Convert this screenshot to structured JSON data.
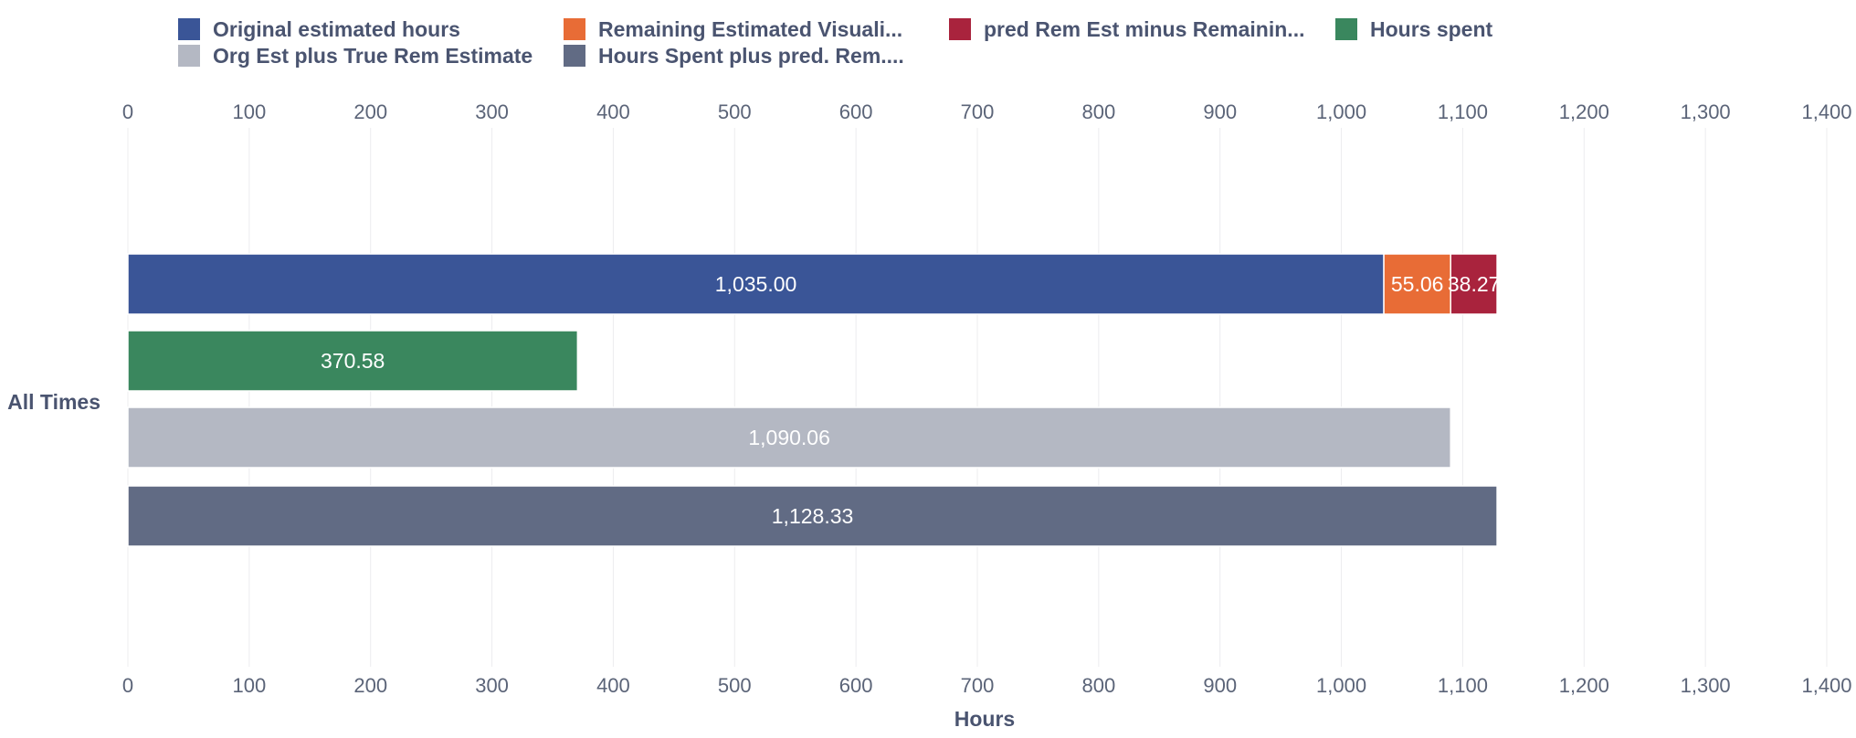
{
  "chart_data": {
    "type": "bar",
    "orientation": "horizontal",
    "categories": [
      "All Times"
    ],
    "xlabel": "Hours",
    "xlim": [
      0,
      1400
    ],
    "x_ticks": [
      0,
      100,
      200,
      300,
      400,
      500,
      600,
      700,
      800,
      900,
      1000,
      1100,
      1200,
      1300,
      1400
    ],
    "x_tick_labels": [
      "0",
      "100",
      "200",
      "300",
      "400",
      "500",
      "600",
      "700",
      "800",
      "900",
      "1,000",
      "1,100",
      "1,200",
      "1,300",
      "1,400"
    ],
    "grid": true,
    "legend_position": "top-left",
    "legend": [
      {
        "label": "Original estimated hours",
        "color": "#3a5597"
      },
      {
        "label": "Remaining Estimated Visuali...",
        "color": "#e86c36"
      },
      {
        "label": "pred Rem Est minus Remainin...",
        "color": "#a9233d"
      },
      {
        "label": "Hours spent",
        "color": "#3a875e"
      },
      {
        "label": "Org Est plus True Rem Estimate",
        "color": "#b4b8c3"
      },
      {
        "label": "Hours Spent plus pred. Rem....",
        "color": "#616b84"
      }
    ],
    "bars": [
      {
        "segments": [
          {
            "series": "Original estimated hours",
            "value": 1035.0,
            "label": "1,035.00",
            "color": "#3a5597"
          },
          {
            "series": "Remaining Estimated Visuali...",
            "value": 55.06,
            "label": "55.06",
            "color": "#e86c36"
          },
          {
            "series": "pred Rem Est minus Remainin...",
            "value": 38.27,
            "label": "38.27",
            "color": "#a9233d"
          }
        ]
      },
      {
        "segments": [
          {
            "series": "Hours spent",
            "value": 370.58,
            "label": "370.58",
            "color": "#3a875e"
          }
        ]
      },
      {
        "segments": [
          {
            "series": "Org Est plus True Rem Estimate",
            "value": 1090.06,
            "label": "1,090.06",
            "color": "#b4b8c3"
          }
        ]
      },
      {
        "segments": [
          {
            "series": "Hours Spent plus pred. Rem....",
            "value": 1128.33,
            "label": "1,128.33",
            "color": "#616b84"
          }
        ]
      }
    ]
  }
}
